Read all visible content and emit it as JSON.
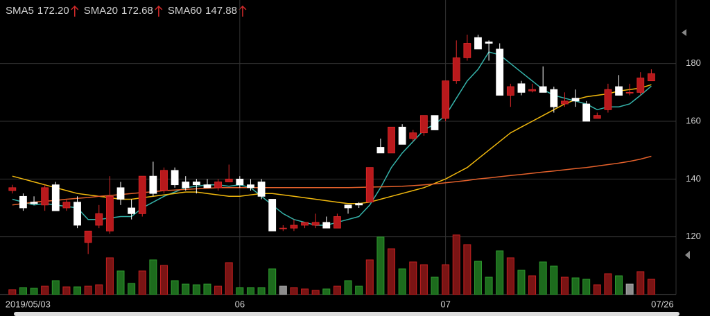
{
  "chart_data": {
    "type": "candlestick",
    "categories": [
      "2019/05/03",
      null,
      null,
      null,
      null,
      null,
      null,
      null,
      null,
      null,
      null,
      null,
      null,
      null,
      null,
      null,
      null,
      null,
      null,
      null,
      null,
      "06",
      null,
      null,
      null,
      null,
      null,
      null,
      null,
      null,
      null,
      null,
      null,
      null,
      null,
      null,
      null,
      null,
      null,
      null,
      "07",
      null,
      null,
      null,
      null,
      null,
      null,
      null,
      null,
      null,
      null,
      null,
      null,
      null,
      null,
      null,
      null,
      null,
      null,
      "07/26"
    ],
    "open": [
      136,
      134,
      132,
      131,
      138,
      130,
      132,
      118,
      124,
      122,
      137,
      130,
      128,
      141,
      136,
      143,
      139,
      139,
      138,
      137,
      139,
      140,
      138,
      139,
      133,
      123,
      123,
      124,
      124,
      125,
      123,
      131,
      131.5,
      132,
      151,
      149,
      158,
      154,
      156,
      162,
      161,
      174,
      182,
      189,
      187.5,
      185,
      169,
      173,
      170.5,
      172,
      171,
      166,
      168,
      166,
      161,
      164,
      172,
      170,
      170,
      174
    ],
    "high": [
      138,
      135,
      134,
      138,
      139,
      133,
      134,
      122,
      131,
      141,
      139,
      133,
      141,
      146,
      144,
      144,
      141,
      140,
      140,
      140,
      145,
      141,
      140,
      140,
      133,
      124,
      126,
      125,
      128,
      127,
      128,
      131,
      132,
      144,
      154,
      158,
      159,
      157,
      162,
      162,
      174,
      188,
      190,
      190,
      188,
      187,
      173,
      174,
      173,
      179,
      172,
      170,
      171,
      167,
      163,
      173,
      176,
      173,
      177,
      178
    ],
    "low": [
      135,
      129,
      131,
      129,
      129,
      129,
      123,
      114,
      123,
      121,
      131,
      126,
      127,
      134,
      135,
      137,
      136,
      135,
      137,
      136,
      139,
      137,
      136,
      133,
      122,
      122,
      122,
      123,
      123,
      123,
      123,
      128,
      130,
      132,
      149,
      149,
      152,
      153,
      155,
      157,
      160,
      173,
      181,
      185,
      181,
      169,
      165,
      169,
      170,
      170,
      163,
      165,
      165,
      160,
      161,
      163,
      169,
      169,
      169,
      174
    ],
    "close": [
      137,
      130,
      131.5,
      137,
      129,
      132,
      124,
      122,
      128,
      134,
      133,
      128,
      141,
      135,
      143,
      138,
      137,
      138,
      137,
      139,
      140,
      138,
      137,
      134,
      122,
      123,
      124,
      125,
      125,
      123,
      127,
      130,
      131,
      144,
      149,
      158,
      152,
      156,
      162,
      157,
      174,
      182,
      187,
      185,
      187,
      169,
      172,
      170,
      171,
      170,
      165,
      167,
      167,
      160,
      162,
      171,
      169,
      170,
      175,
      176.5
    ],
    "volume": [
      7,
      10,
      9,
      12,
      20,
      11,
      11,
      12,
      14,
      53,
      34,
      16,
      34,
      50,
      42,
      20,
      15,
      14,
      15,
      12,
      46,
      10,
      10,
      10,
      37,
      12,
      10,
      8,
      6,
      8,
      12,
      20,
      12,
      50,
      83,
      66,
      37,
      47,
      43,
      25,
      43,
      86,
      72,
      48,
      25,
      63,
      53,
      35,
      27,
      47,
      41,
      25,
      24,
      22,
      14,
      30,
      27,
      15,
      33,
      22
    ],
    "vlim": [
      0,
      100
    ],
    "series": [
      {
        "name": "SMA5",
        "color": "#35b3aa",
        "value_label": "172.20",
        "values": [
          133,
          132,
          131,
          131.5,
          131,
          130.5,
          130,
          126,
          126,
          126.5,
          127,
          127,
          130,
          132,
          134,
          135.5,
          137,
          137.5,
          138,
          138,
          137.5,
          138,
          137,
          134,
          131,
          128,
          126,
          125,
          124,
          124,
          125,
          126,
          127,
          131,
          137,
          144,
          149,
          153,
          157,
          159,
          162,
          168,
          174,
          178,
          184,
          183,
          180,
          177,
          174,
          171,
          169,
          168,
          167,
          166,
          164,
          165,
          165,
          166,
          169,
          172.2
        ]
      },
      {
        "name": "SMA20",
        "color": "#f2b90d",
        "value_label": "172.68",
        "values": [
          141,
          140,
          139,
          138,
          137,
          136,
          135,
          134.5,
          134,
          133.5,
          133,
          133,
          133.5,
          134,
          134.5,
          135,
          135.5,
          135.5,
          135,
          134.5,
          134,
          134,
          134.5,
          135,
          135,
          134.5,
          134,
          133.5,
          133,
          132.5,
          132,
          131.5,
          131.5,
          132,
          133,
          134,
          135,
          136,
          137,
          138.5,
          140,
          142,
          144,
          147,
          150,
          153,
          156,
          158,
          160,
          162,
          164,
          166,
          167.5,
          168.5,
          169,
          169.5,
          170.5,
          171,
          171.5,
          172.68
        ]
      },
      {
        "name": "SMA60",
        "color": "#e5612b",
        "value_label": "147.88",
        "values": [
          131,
          131.5,
          132,
          132.3,
          132.6,
          133,
          133.3,
          133.6,
          134,
          134.3,
          134.6,
          135,
          135.3,
          135.6,
          136,
          136.2,
          136.4,
          136.6,
          136.8,
          137,
          137,
          137,
          137,
          137,
          137,
          137,
          137,
          137,
          137,
          137,
          137,
          137,
          137.1,
          137.2,
          137.3,
          137.4,
          137.5,
          137.7,
          138,
          138.3,
          138.7,
          139.1,
          139.5,
          140,
          140.4,
          140.8,
          141.2,
          141.6,
          142,
          142.4,
          142.8,
          143.2,
          143.6,
          144,
          144.5,
          145,
          145.5,
          146.1,
          146.9,
          147.88
        ]
      }
    ],
    "up_color": "#b8191c",
    "down_color": "#ffffff",
    "volume_up_color": "#7a1414",
    "volume_down_color": "#1d6b1d",
    "volume_flat_color": "#8c8c8c",
    "ylim": [
      100,
      202
    ],
    "yticks": [
      120,
      140,
      160,
      180
    ],
    "grid": true
  }
}
